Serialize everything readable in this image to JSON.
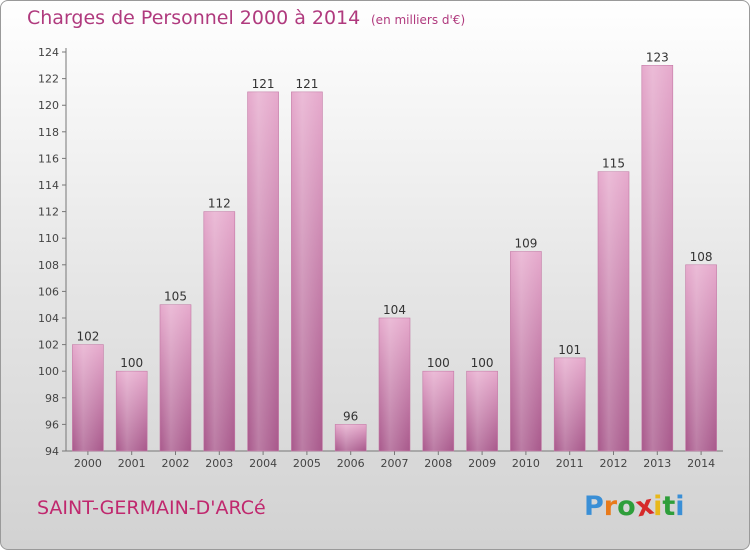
{
  "chart_data": {
    "type": "bar",
    "title": "Charges de Personnel 2000 à 2014",
    "subtitle": "(en milliers d'€)",
    "categories": [
      "2000",
      "2001",
      "2002",
      "2003",
      "2004",
      "2005",
      "2006",
      "2007",
      "2008",
      "2009",
      "2010",
      "2011",
      "2012",
      "2013",
      "2014"
    ],
    "values": [
      102,
      100,
      105,
      112,
      121,
      121,
      96,
      104,
      100,
      100,
      109,
      101,
      115,
      123,
      108
    ],
    "ylim": [
      94,
      124
    ],
    "yticks": [
      94,
      96,
      98,
      100,
      102,
      104,
      106,
      108,
      110,
      112,
      114,
      116,
      118,
      120,
      122,
      124
    ],
    "grid": false,
    "bar_color": "#d58fb8"
  },
  "footer": {
    "commune": "SAINT-GERMAIN-D'ARCé",
    "logo_letters": [
      "P",
      "r",
      "o",
      "x",
      "i",
      "t",
      "i"
    ],
    "logo_colors": [
      "#3a8fd6",
      "#e87a1a",
      "#2e9e3a",
      "#d62a2a",
      "#e8b81a",
      "#2e9e3a",
      "#3a8fd6"
    ]
  }
}
